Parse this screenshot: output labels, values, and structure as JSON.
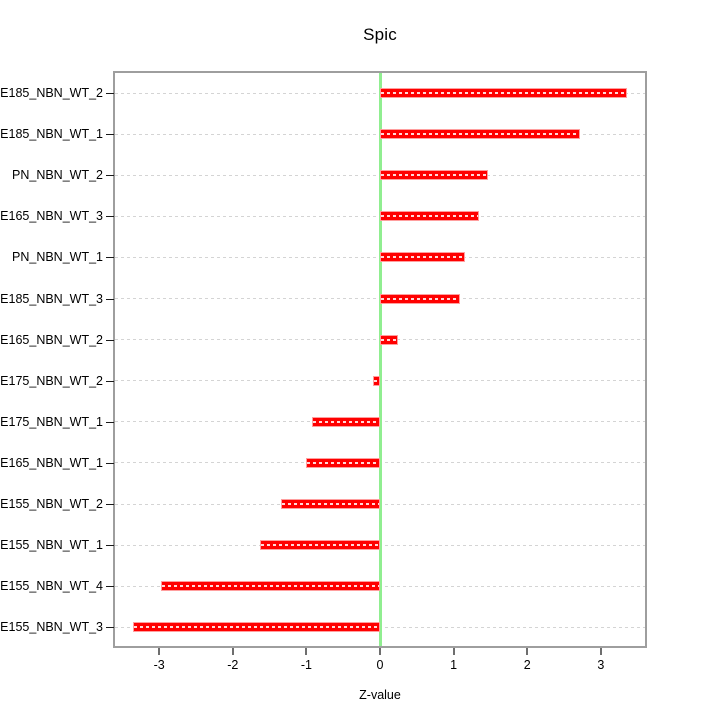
{
  "chart_data": {
    "type": "bar",
    "orientation": "horizontal",
    "title": "Spic",
    "xlabel": "Z-value",
    "ylabel": "",
    "categories": [
      "E185_NBN_WT_2",
      "E185_NBN_WT_1",
      "PN_NBN_WT_2",
      "E165_NBN_WT_3",
      "PN_NBN_WT_1",
      "E185_NBN_WT_3",
      "E165_NBN_WT_2",
      "E175_NBN_WT_2",
      "E175_NBN_WT_1",
      "E165_NBN_WT_1",
      "E155_NBN_WT_2",
      "E155_NBN_WT_1",
      "E155_NBN_WT_4",
      "E155_NBN_WT_3"
    ],
    "values": [
      3.35,
      2.72,
      1.47,
      1.34,
      1.15,
      1.09,
      0.24,
      -0.1,
      -0.93,
      -1.01,
      -1.34,
      -1.63,
      -2.97,
      -3.35
    ],
    "x_ticks": [
      -3,
      -2,
      -1,
      0,
      1,
      2,
      3
    ],
    "x_tick_labels": [
      "-3",
      "-2",
      "-1",
      "0",
      "1",
      "2",
      "3"
    ],
    "xlim": [
      -3.6,
      3.6
    ],
    "grid": "dashed-horizontal-per-category",
    "legend": "none",
    "reference_line_x": 0,
    "colors": {
      "bar": "#ff0000",
      "bar_border": "#ff9e9e",
      "bar_dash_overlay": "#ffffff",
      "zero_line": "#90ee90",
      "gridline": "#d4d4d4",
      "plot_border": "#9e9e9e",
      "text": "#000000"
    }
  }
}
